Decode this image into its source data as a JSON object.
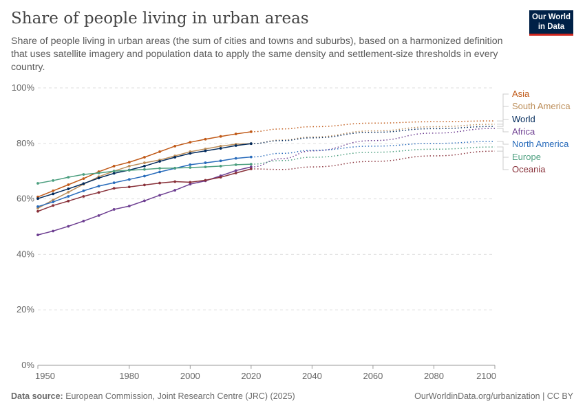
{
  "header": {
    "title": "Share of people living in urban areas",
    "subtitle": "Share of people living in urban areas (the sum of cities and towns and suburbs), based on a harmonized definition that uses satellite imagery and population data to apply the same density and settlement-size thresholds in every country.",
    "logo_text": "Our World in Data"
  },
  "footer": {
    "source_label": "Data source:",
    "source_text": "European Commission, Joint Research Centre (JRC) (2025)",
    "link": "OurWorldinData.org/urbanization | CC BY"
  },
  "chart_data": {
    "type": "line",
    "title": "Share of people living in urban areas",
    "xlim": [
      1950,
      2100
    ],
    "ylim": [
      0,
      100
    ],
    "x_ticks": [
      "1950",
      "1980",
      "2000",
      "2020",
      "2040",
      "2060",
      "2080",
      "2100"
    ],
    "x_tick_values": [
      1950,
      1980,
      2000,
      2020,
      2040,
      2060,
      2080,
      2100
    ],
    "y_ticks": [
      "0%",
      "20%",
      "40%",
      "60%",
      "80%",
      "100%"
    ],
    "y_tick_values": [
      0,
      20,
      40,
      60,
      80,
      100
    ],
    "grid": "horizontal dashed",
    "legend": "right (inline labels)",
    "x": [
      1950,
      1955,
      1960,
      1965,
      1970,
      1975,
      1980,
      1985,
      1990,
      1995,
      2000,
      2005,
      2010,
      2015,
      2020
    ],
    "projection_x": [
      2020,
      2030,
      2040,
      2060,
      2080,
      2100
    ],
    "projection_style": "dotted",
    "series": [
      {
        "name": "Asia",
        "color": "#c05917",
        "values": [
          60.7,
          62.9,
          65.1,
          67.3,
          69.8,
          71.8,
          73.2,
          75.0,
          77.0,
          79.0,
          80.4,
          81.5,
          82.5,
          83.4,
          84.2
        ],
        "projection": [
          84.2,
          85.2,
          86.0,
          87.3,
          87.8,
          88.1
        ]
      },
      {
        "name": "South America",
        "color": "#bc8e5a",
        "values": [
          56.6,
          59.6,
          62.4,
          65.3,
          68.0,
          70.0,
          71.8,
          73.0,
          74.0,
          75.5,
          77.0,
          78.0,
          79.0,
          79.7,
          79.9
        ],
        "projection": [
          79.9,
          81.2,
          82.3,
          84.5,
          86.0,
          86.9
        ]
      },
      {
        "name": "World",
        "color": "#00295b",
        "values": [
          60.1,
          61.8,
          63.6,
          65.5,
          67.5,
          69.2,
          70.4,
          71.8,
          73.5,
          75.0,
          76.4,
          77.3,
          78.2,
          79.2,
          79.9
        ],
        "projection": [
          79.9,
          81.0,
          82.0,
          84.0,
          85.3,
          86.1
        ]
      },
      {
        "name": "Africa",
        "color": "#6d3e91",
        "values": [
          47.0,
          48.4,
          50.1,
          52.0,
          54.0,
          56.2,
          57.4,
          59.3,
          61.3,
          63.1,
          65.3,
          66.5,
          68.3,
          70.2,
          71.5
        ],
        "projection": [
          71.5,
          74.5,
          77.3,
          81.0,
          83.7,
          85.4
        ]
      },
      {
        "name": "North America",
        "color": "#286bbb",
        "values": [
          57.2,
          58.9,
          60.9,
          62.9,
          64.6,
          65.8,
          67.0,
          68.2,
          69.7,
          71.0,
          72.3,
          73.0,
          73.7,
          74.6,
          75.1
        ],
        "projection": [
          75.1,
          76.4,
          77.5,
          79.0,
          80.0,
          80.7
        ]
      },
      {
        "name": "Europe",
        "color": "#4c9f7f",
        "values": [
          65.6,
          66.6,
          67.8,
          68.8,
          69.3,
          70.0,
          70.3,
          70.6,
          71.0,
          71.1,
          71.3,
          71.5,
          71.8,
          72.3,
          72.5
        ],
        "projection": [
          72.5,
          73.8,
          75.0,
          76.8,
          77.9,
          78.7
        ]
      },
      {
        "name": "Oceania",
        "color": "#883039",
        "values": [
          55.5,
          57.6,
          59.2,
          60.9,
          62.3,
          63.8,
          64.3,
          65.0,
          65.7,
          66.2,
          66.0,
          66.7,
          67.8,
          69.3,
          70.8
        ],
        "projection": [
          70.8,
          70.6,
          71.5,
          73.5,
          75.5,
          77.2
        ]
      }
    ]
  }
}
